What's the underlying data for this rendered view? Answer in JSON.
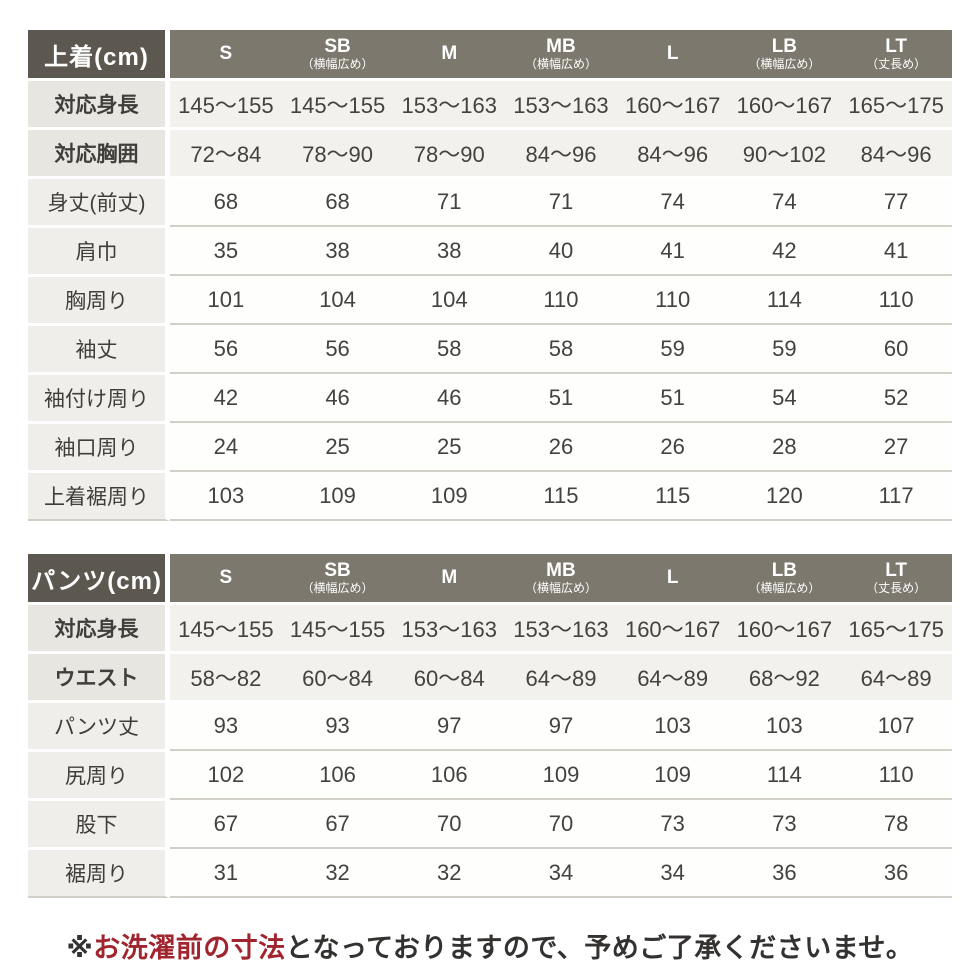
{
  "colors": {
    "header_label_bg": "#5c584f",
    "header_col_bg": "#7c786d",
    "row_label_bg": "#efeeea",
    "highlight_label_bg": "#e8e6e1",
    "highlight_cell_bg": "#f3f1ed",
    "row_border": "#d2cfc9",
    "note_red": "#a1252f",
    "text": "#403e3a"
  },
  "chart_data": [
    {
      "type": "table",
      "title": "上着(cm)",
      "columns": [
        {
          "label": "S",
          "sub": ""
        },
        {
          "label": "SB",
          "sub": "（横幅広め）"
        },
        {
          "label": "M",
          "sub": ""
        },
        {
          "label": "MB",
          "sub": "（横幅広め）"
        },
        {
          "label": "L",
          "sub": ""
        },
        {
          "label": "LB",
          "sub": "（横幅広め）"
        },
        {
          "label": "LT",
          "sub": "（丈長め）"
        }
      ],
      "rows": [
        {
          "label": "対応身長",
          "bold": true,
          "values": [
            "145〜155",
            "145〜155",
            "153〜163",
            "153〜163",
            "160〜167",
            "160〜167",
            "165〜175"
          ]
        },
        {
          "label": "対応胸囲",
          "bold": true,
          "values": [
            "72〜84",
            "78〜90",
            "78〜90",
            "84〜96",
            "84〜96",
            "90〜102",
            "84〜96"
          ]
        },
        {
          "label": "身丈(前丈)",
          "bold": false,
          "values": [
            "68",
            "68",
            "71",
            "71",
            "74",
            "74",
            "77"
          ]
        },
        {
          "label": "肩巾",
          "bold": false,
          "values": [
            "35",
            "38",
            "38",
            "40",
            "41",
            "42",
            "41"
          ]
        },
        {
          "label": "胸周り",
          "bold": false,
          "values": [
            "101",
            "104",
            "104",
            "110",
            "110",
            "114",
            "110"
          ]
        },
        {
          "label": "袖丈",
          "bold": false,
          "values": [
            "56",
            "56",
            "58",
            "58",
            "59",
            "59",
            "60"
          ]
        },
        {
          "label": "袖付け周り",
          "bold": false,
          "values": [
            "42",
            "46",
            "46",
            "51",
            "51",
            "54",
            "52"
          ]
        },
        {
          "label": "袖口周り",
          "bold": false,
          "values": [
            "24",
            "25",
            "25",
            "26",
            "26",
            "28",
            "27"
          ]
        },
        {
          "label": "上着裾周り",
          "bold": false,
          "values": [
            "103",
            "109",
            "109",
            "115",
            "115",
            "120",
            "117"
          ]
        }
      ]
    },
    {
      "type": "table",
      "title": "パンツ(cm)",
      "columns": [
        {
          "label": "S",
          "sub": ""
        },
        {
          "label": "SB",
          "sub": "（横幅広め）"
        },
        {
          "label": "M",
          "sub": ""
        },
        {
          "label": "MB",
          "sub": "（横幅広め）"
        },
        {
          "label": "L",
          "sub": ""
        },
        {
          "label": "LB",
          "sub": "（横幅広め）"
        },
        {
          "label": "LT",
          "sub": "（丈長め）"
        }
      ],
      "rows": [
        {
          "label": "対応身長",
          "bold": true,
          "values": [
            "145〜155",
            "145〜155",
            "153〜163",
            "153〜163",
            "160〜167",
            "160〜167",
            "165〜175"
          ]
        },
        {
          "label": "ウエスト",
          "bold": true,
          "values": [
            "58〜82",
            "60〜84",
            "60〜84",
            "64〜89",
            "64〜89",
            "68〜92",
            "64〜89"
          ]
        },
        {
          "label": "パンツ丈",
          "bold": false,
          "values": [
            "93",
            "93",
            "97",
            "97",
            "103",
            "103",
            "107"
          ]
        },
        {
          "label": "尻周り",
          "bold": false,
          "values": [
            "102",
            "106",
            "106",
            "109",
            "109",
            "114",
            "110"
          ]
        },
        {
          "label": "股下",
          "bold": false,
          "values": [
            "67",
            "67",
            "70",
            "70",
            "73",
            "73",
            "78"
          ]
        },
        {
          "label": "裾周り",
          "bold": false,
          "values": [
            "31",
            "32",
            "32",
            "34",
            "34",
            "36",
            "36"
          ]
        }
      ]
    }
  ],
  "footer": {
    "prefix": "※",
    "highlight": "お洗濯前の寸法",
    "suffix": "となっておりますので、予めご了承くださいませ。"
  }
}
